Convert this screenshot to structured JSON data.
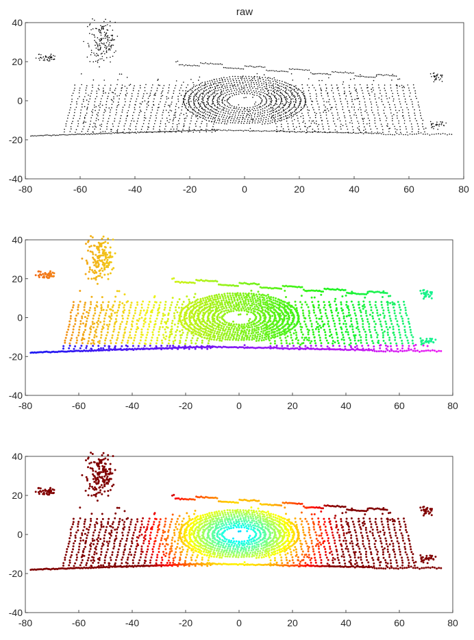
{
  "figure": {
    "background": "#ffffff"
  },
  "chart_data": [
    {
      "type": "scatter",
      "title": "raw",
      "colormap": "black",
      "xlim": [
        -80,
        80
      ],
      "ylim": [
        -40,
        40
      ],
      "xticks": [
        -80,
        -60,
        -40,
        -20,
        0,
        20,
        40,
        60,
        80
      ],
      "yticks": [
        40,
        20,
        0,
        -20,
        -40
      ],
      "grid": false,
      "points_description": "LiDAR point cloud (bird's-eye view, meters): concentric scan rings around origin, wall segments near y≈20, ground line near y≈-18"
    },
    {
      "type": "scatter",
      "title": "",
      "colormap": "hsv-by-position",
      "xlim": [
        -80,
        80
      ],
      "ylim": [
        -40,
        40
      ],
      "xticks": [
        -80,
        -60,
        -40,
        -20,
        0,
        20,
        40,
        60,
        80
      ],
      "yticks": [
        40,
        20,
        0,
        -20,
        -40
      ],
      "grid": false,
      "points_description": "Same point cloud colored by a hue gradient (orange/red on left, yellow-green center, green/cyan right, blue/violet along the bottom line)"
    },
    {
      "type": "scatter",
      "title": "",
      "colormap": "jet-by-range",
      "xlim": [
        -80,
        80
      ],
      "ylim": [
        -40,
        40
      ],
      "xticks": [
        -80,
        -60,
        -40,
        -20,
        0,
        20,
        40,
        60,
        80
      ],
      "yticks": [
        40,
        20,
        0,
        -20,
        -40
      ],
      "grid": false,
      "points_description": "Same point cloud colored by distance (blue near origin, cyan/green mid, red far)"
    }
  ]
}
